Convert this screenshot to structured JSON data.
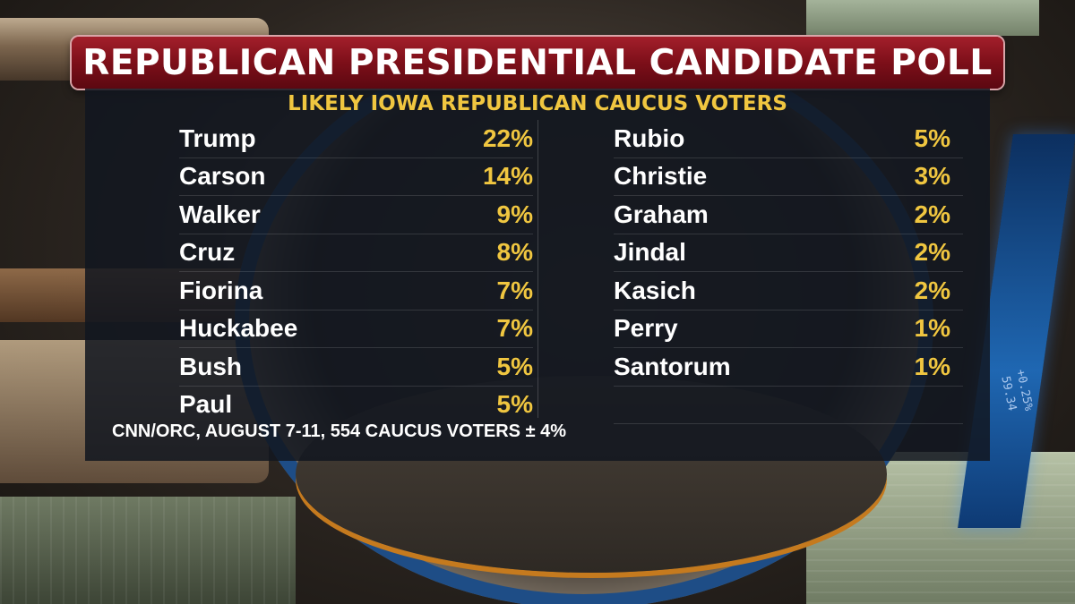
{
  "title": "REPUBLICAN PRESIDENTIAL CANDIDATE POLL",
  "subtitle": "LIKELY IOWA REPUBLICAN CAUCUS VOTERS",
  "left_column": [
    {
      "name": "Trump",
      "pct": "22%"
    },
    {
      "name": "Carson",
      "pct": "14%"
    },
    {
      "name": "Walker",
      "pct": "9%"
    },
    {
      "name": "Cruz",
      "pct": "8%"
    },
    {
      "name": "Fiorina",
      "pct": "7%"
    },
    {
      "name": "Huckabee",
      "pct": "7%"
    },
    {
      "name": "Bush",
      "pct": "5%"
    },
    {
      "name": "Paul",
      "pct": "5%"
    }
  ],
  "right_column": [
    {
      "name": "Rubio",
      "pct": "5%"
    },
    {
      "name": "Christie",
      "pct": "3%"
    },
    {
      "name": "Graham",
      "pct": "2%"
    },
    {
      "name": "Jindal",
      "pct": "2%"
    },
    {
      "name": "Kasich",
      "pct": "2%"
    },
    {
      "name": "Perry",
      "pct": "1%"
    },
    {
      "name": "Santorum",
      "pct": "1%"
    }
  ],
  "footer": "CNN/ORC, AUGUST 7-11, 554 CAUCUS VOTERS ± 4%",
  "background_ticker": "+0.25%  59.34",
  "colors": {
    "title_bar": "#7d0f19",
    "accent_yellow": "#f0c640",
    "panel": "#12161f",
    "text": "#ffffff"
  }
}
